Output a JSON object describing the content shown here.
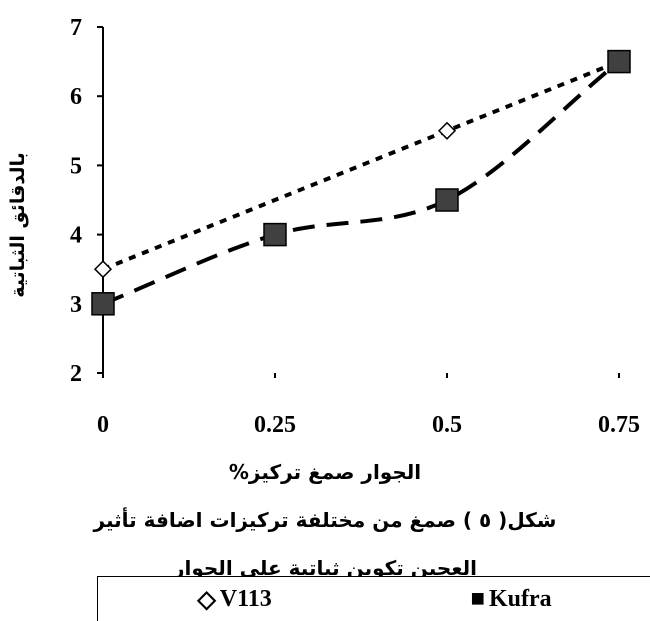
{
  "chart_data": {
    "type": "line",
    "x": [
      0,
      0.25,
      0.5,
      0.75
    ],
    "x_tick_labels": [
      "0",
      "0.25",
      "0.5",
      "0.75"
    ],
    "y_tick_labels": [
      "2",
      "3",
      "4",
      "5",
      "6",
      "7"
    ],
    "ylim": [
      2,
      7
    ],
    "xlim": [
      0,
      0.75
    ],
    "ylabel": "بالدقائق الثباتية",
    "xlabel": "الجوار صمغ تركيز%",
    "grid": false,
    "legend_position": "bottom",
    "series": [
      {
        "name": "V113",
        "x": [
          0,
          0.5,
          0.75
        ],
        "values": [
          3.5,
          5.5,
          6.5
        ],
        "marker": "diamond-open",
        "line": "short-dash",
        "color": "#000000"
      },
      {
        "name": "Kufra",
        "x": [
          0,
          0.25,
          0.5,
          0.75
        ],
        "values": [
          3,
          4,
          4.5,
          6.5
        ],
        "marker": "square-filled",
        "line": "long-dash",
        "color": "#000000",
        "marker_fill": "#404040"
      }
    ]
  },
  "caption": {
    "line1": "شكل( ٥ )  صمغ من مختلفة تركيزات اضافة تأثير",
    "line2": "العجين تكوين ثباتية على الجوار"
  },
  "legend": {
    "v113_symbol": "◇",
    "v113_label": "V113",
    "kufra_symbol": "■",
    "kufra_label": "Kufra"
  }
}
